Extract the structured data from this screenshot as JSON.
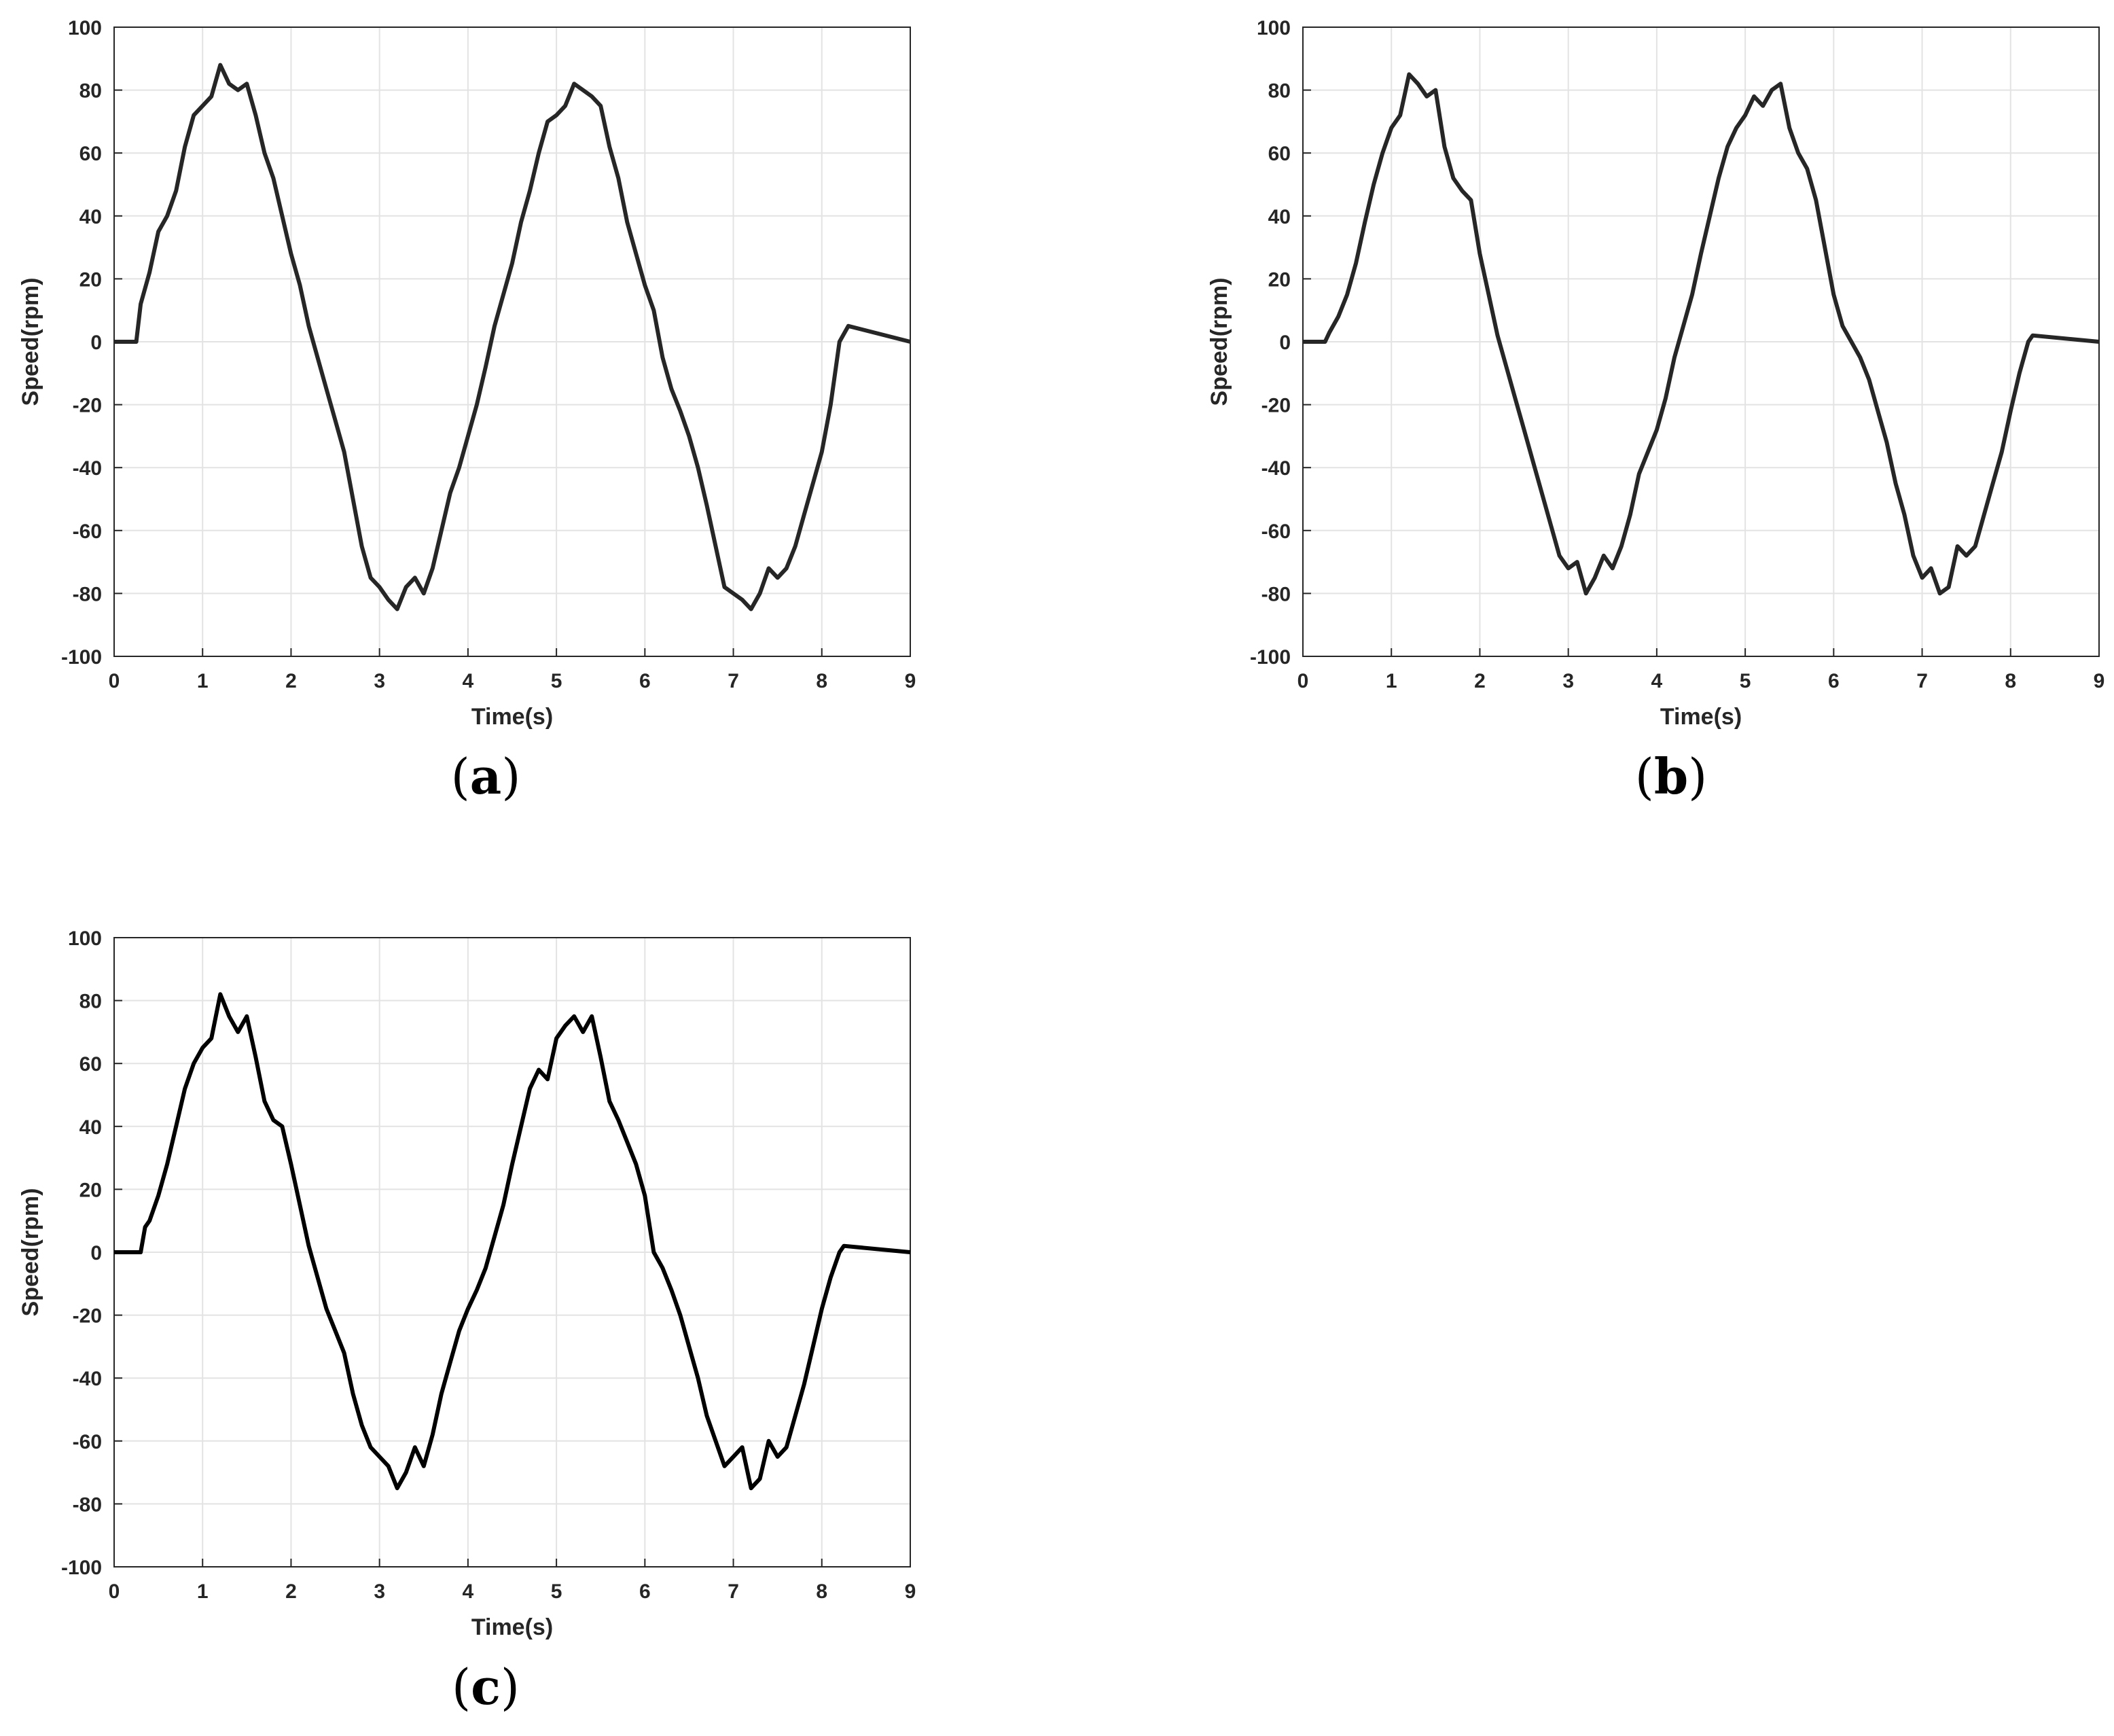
{
  "chart_data": [
    {
      "id": "a",
      "type": "line",
      "caption": "a",
      "xlabel": "Time(s)",
      "ylabel": "Speed(rpm)",
      "xlim": [
        0,
        9
      ],
      "ylim": [
        -100,
        100
      ],
      "xticks": [
        0,
        1,
        2,
        3,
        4,
        5,
        6,
        7,
        8,
        9
      ],
      "yticks": [
        100,
        80,
        60,
        40,
        20,
        0,
        -20,
        -40,
        -60,
        -80,
        -100
      ],
      "grid": true,
      "series": [
        {
          "color": "#262626",
          "x": [
            0,
            0.25,
            0.3,
            0.4,
            0.5,
            0.6,
            0.7,
            0.8,
            0.9,
            1.0,
            1.1,
            1.2,
            1.3,
            1.4,
            1.5,
            1.6,
            1.7,
            1.8,
            1.9,
            2.0,
            2.1,
            2.2,
            2.3,
            2.4,
            2.5,
            2.6,
            2.7,
            2.8,
            2.9,
            3.0,
            3.1,
            3.2,
            3.3,
            3.4,
            3.5,
            3.6,
            3.7,
            3.8,
            3.9,
            4.0,
            4.1,
            4.2,
            4.3,
            4.4,
            4.5,
            4.6,
            4.7,
            4.8,
            4.9,
            5.0,
            5.1,
            5.2,
            5.3,
            5.4,
            5.5,
            5.6,
            5.7,
            5.8,
            5.9,
            6.0,
            6.1,
            6.2,
            6.3,
            6.4,
            6.5,
            6.6,
            6.7,
            6.8,
            6.9,
            7.0,
            7.1,
            7.2,
            7.3,
            7.4,
            7.5,
            7.6,
            7.7,
            7.8,
            7.9,
            8.0,
            8.1,
            8.2,
            8.3,
            9.0
          ],
          "y": [
            0,
            0,
            12,
            22,
            35,
            40,
            48,
            62,
            72,
            75,
            78,
            88,
            82,
            80,
            82,
            72,
            60,
            52,
            40,
            28,
            18,
            5,
            -5,
            -15,
            -25,
            -35,
            -50,
            -65,
            -75,
            -78,
            -82,
            -85,
            -78,
            -75,
            -80,
            -72,
            -60,
            -48,
            -40,
            -30,
            -20,
            -8,
            5,
            15,
            25,
            38,
            48,
            60,
            70,
            72,
            75,
            82,
            80,
            78,
            75,
            62,
            52,
            38,
            28,
            18,
            10,
            -5,
            -15,
            -22,
            -30,
            -40,
            -52,
            -65,
            -78,
            -80,
            -82,
            -85,
            -80,
            -72,
            -75,
            -72,
            -65,
            -55,
            -45,
            -35,
            -20,
            0,
            5,
            0
          ]
        }
      ]
    },
    {
      "id": "b",
      "type": "line",
      "caption": "b",
      "xlabel": "Time(s)",
      "ylabel": "Speed(rpm)",
      "xlim": [
        0,
        9
      ],
      "ylim": [
        -100,
        100
      ],
      "xticks": [
        0,
        1,
        2,
        3,
        4,
        5,
        6,
        7,
        8,
        9
      ],
      "yticks": [
        100,
        80,
        60,
        40,
        20,
        0,
        -20,
        -40,
        -60,
        -80,
        -100
      ],
      "grid": true,
      "series": [
        {
          "color": "#262626",
          "x": [
            0,
            0.25,
            0.3,
            0.4,
            0.5,
            0.6,
            0.7,
            0.8,
            0.9,
            1.0,
            1.1,
            1.2,
            1.3,
            1.4,
            1.5,
            1.6,
            1.7,
            1.8,
            1.9,
            2.0,
            2.1,
            2.2,
            2.3,
            2.4,
            2.5,
            2.6,
            2.7,
            2.8,
            2.9,
            3.0,
            3.1,
            3.2,
            3.3,
            3.4,
            3.5,
            3.6,
            3.7,
            3.8,
            3.9,
            4.0,
            4.1,
            4.2,
            4.3,
            4.4,
            4.5,
            4.6,
            4.7,
            4.8,
            4.9,
            5.0,
            5.1,
            5.2,
            5.3,
            5.4,
            5.5,
            5.6,
            5.7,
            5.8,
            5.9,
            6.0,
            6.1,
            6.2,
            6.3,
            6.4,
            6.5,
            6.6,
            6.7,
            6.8,
            6.9,
            7.0,
            7.1,
            7.2,
            7.3,
            7.4,
            7.5,
            7.6,
            7.7,
            7.8,
            7.9,
            8.0,
            8.1,
            8.2,
            8.25,
            9.0
          ],
          "y": [
            0,
            0,
            3,
            8,
            15,
            25,
            38,
            50,
            60,
            68,
            72,
            85,
            82,
            78,
            80,
            62,
            52,
            48,
            45,
            28,
            15,
            2,
            -8,
            -18,
            -28,
            -38,
            -48,
            -58,
            -68,
            -72,
            -70,
            -80,
            -75,
            -68,
            -72,
            -65,
            -55,
            -42,
            -35,
            -28,
            -18,
            -5,
            5,
            15,
            28,
            40,
            52,
            62,
            68,
            72,
            78,
            75,
            80,
            82,
            68,
            60,
            55,
            45,
            30,
            15,
            5,
            0,
            -5,
            -12,
            -22,
            -32,
            -45,
            -55,
            -68,
            -75,
            -72,
            -80,
            -78,
            -65,
            -68,
            -65,
            -55,
            -45,
            -35,
            -22,
            -10,
            0,
            2,
            0
          ]
        }
      ]
    },
    {
      "id": "c",
      "type": "line",
      "caption": "c",
      "xlabel": "Time(s)",
      "ylabel": "Speed(rpm)",
      "xlim": [
        0,
        9
      ],
      "ylim": [
        -100,
        100
      ],
      "xticks": [
        0,
        1,
        2,
        3,
        4,
        5,
        6,
        7,
        8,
        9
      ],
      "yticks": [
        100,
        80,
        60,
        40,
        20,
        0,
        -20,
        -40,
        -60,
        -80,
        -100
      ],
      "grid": true,
      "series": [
        {
          "color": "#000000",
          "x": [
            0,
            0.3,
            0.35,
            0.4,
            0.5,
            0.6,
            0.7,
            0.8,
            0.9,
            1.0,
            1.1,
            1.2,
            1.3,
            1.4,
            1.5,
            1.6,
            1.7,
            1.8,
            1.9,
            2.0,
            2.1,
            2.2,
            2.3,
            2.4,
            2.5,
            2.6,
            2.7,
            2.8,
            2.9,
            3.0,
            3.1,
            3.2,
            3.3,
            3.4,
            3.5,
            3.6,
            3.7,
            3.8,
            3.9,
            4.0,
            4.1,
            4.2,
            4.3,
            4.4,
            4.5,
            4.6,
            4.7,
            4.8,
            4.9,
            5.0,
            5.1,
            5.2,
            5.3,
            5.4,
            5.5,
            5.6,
            5.7,
            5.8,
            5.9,
            6.0,
            6.1,
            6.2,
            6.3,
            6.4,
            6.5,
            6.6,
            6.7,
            6.8,
            6.9,
            7.0,
            7.1,
            7.2,
            7.3,
            7.4,
            7.5,
            7.6,
            7.7,
            7.8,
            7.9,
            8.0,
            8.1,
            8.2,
            8.25,
            9.0
          ],
          "y": [
            0,
            0,
            8,
            10,
            18,
            28,
            40,
            52,
            60,
            65,
            68,
            82,
            75,
            70,
            75,
            62,
            48,
            42,
            40,
            28,
            15,
            2,
            -8,
            -18,
            -25,
            -32,
            -45,
            -55,
            -62,
            -65,
            -68,
            -75,
            -70,
            -62,
            -68,
            -58,
            -45,
            -35,
            -25,
            -18,
            -12,
            -5,
            5,
            15,
            28,
            40,
            52,
            58,
            55,
            68,
            72,
            75,
            70,
            75,
            62,
            48,
            42,
            35,
            28,
            18,
            0,
            -5,
            -12,
            -20,
            -30,
            -40,
            -52,
            -60,
            -68,
            -65,
            -62,
            -75,
            -72,
            -60,
            -65,
            -62,
            -52,
            -42,
            -30,
            -18,
            -8,
            0,
            2,
            0
          ]
        }
      ]
    }
  ]
}
